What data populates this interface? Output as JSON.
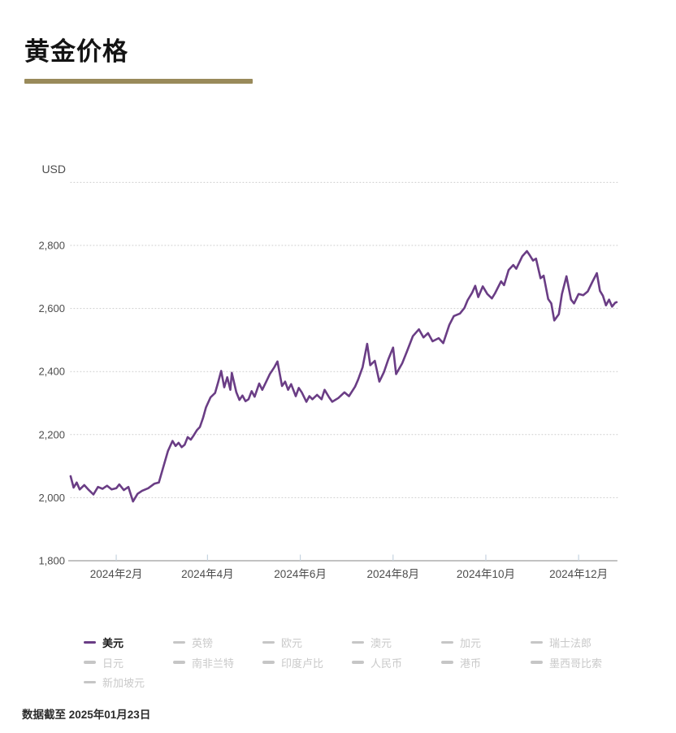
{
  "title": "黄金价格",
  "footer": {
    "text": "数据截至 2025年01月23日"
  },
  "colors": {
    "accent_bar": "#998a5a",
    "line": "#6a3d85",
    "grid": "#cccccc",
    "axis": "#9e9e9e",
    "tick": "#c5d3e0",
    "axis_text": "#4d4d4d",
    "inactive_text": "#c9c9c9",
    "inactive_swatch": "#c6c6c6"
  },
  "legend": {
    "items": [
      {
        "label": "美元",
        "active": true
      },
      {
        "label": "英镑",
        "active": false
      },
      {
        "label": "欧元",
        "active": false
      },
      {
        "label": "澳元",
        "active": false
      },
      {
        "label": "加元",
        "active": false
      },
      {
        "label": "瑞士法郎",
        "active": false
      },
      {
        "label": "日元",
        "active": false
      },
      {
        "label": "南非兰特",
        "active": false
      },
      {
        "label": "印度卢比",
        "active": false
      },
      {
        "label": "人民币",
        "active": false
      },
      {
        "label": "港币",
        "active": false
      },
      {
        "label": "墨西哥比索",
        "active": false
      },
      {
        "label": "新加坡元",
        "active": false
      }
    ]
  },
  "chart_data": {
    "type": "line",
    "title": "黄金价格",
    "ylabel": "USD",
    "grid": "horizontal-dotted",
    "legend_position": "bottom",
    "x_axis": {
      "tick_labels": [
        "2024年2月",
        "2024年4月",
        "2024年6月",
        "2024年8月",
        "2024年10月",
        "2024年12月"
      ],
      "tick_days": [
        30,
        90,
        151,
        212,
        273,
        334
      ],
      "domain_days": [
        0,
        359.5
      ]
    },
    "y_axis": {
      "ticks": [
        1800,
        2000,
        2200,
        2400,
        2600,
        2800
      ],
      "tick_labels": [
        "1,800",
        "2,000",
        "2,200",
        "2,400",
        "2,600",
        "2,800"
      ],
      "range": [
        1800,
        3000
      ],
      "gridline_values": [
        2000,
        2200,
        2400,
        2600,
        2800,
        3000
      ]
    },
    "series": [
      {
        "name": "美元",
        "color": "#6a3d85",
        "points": [
          [
            0,
            2068
          ],
          [
            2,
            2032
          ],
          [
            4,
            2048
          ],
          [
            6,
            2026
          ],
          [
            9,
            2040
          ],
          [
            12,
            2024
          ],
          [
            15,
            2010
          ],
          [
            18,
            2034
          ],
          [
            21,
            2028
          ],
          [
            24,
            2038
          ],
          [
            27,
            2026
          ],
          [
            30,
            2030
          ],
          [
            32,
            2042
          ],
          [
            35,
            2024
          ],
          [
            38,
            2034
          ],
          [
            41,
            1988
          ],
          [
            44,
            2012
          ],
          [
            47,
            2022
          ],
          [
            51,
            2030
          ],
          [
            55,
            2044
          ],
          [
            58,
            2048
          ],
          [
            61,
            2098
          ],
          [
            64,
            2148
          ],
          [
            67,
            2180
          ],
          [
            69,
            2164
          ],
          [
            71,
            2174
          ],
          [
            73,
            2160
          ],
          [
            75,
            2168
          ],
          [
            77,
            2192
          ],
          [
            79,
            2184
          ],
          [
            81,
            2198
          ],
          [
            83,
            2214
          ],
          [
            85,
            2224
          ],
          [
            87,
            2252
          ],
          [
            89,
            2286
          ],
          [
            92,
            2318
          ],
          [
            95,
            2332
          ],
          [
            97,
            2366
          ],
          [
            99,
            2402
          ],
          [
            101,
            2350
          ],
          [
            103,
            2382
          ],
          [
            105,
            2342
          ],
          [
            106,
            2396
          ],
          [
            109,
            2334
          ],
          [
            111,
            2310
          ],
          [
            113,
            2324
          ],
          [
            115,
            2306
          ],
          [
            117,
            2312
          ],
          [
            119,
            2338
          ],
          [
            121,
            2320
          ],
          [
            124,
            2362
          ],
          [
            126,
            2342
          ],
          [
            129,
            2372
          ],
          [
            131,
            2392
          ],
          [
            134,
            2414
          ],
          [
            136,
            2432
          ],
          [
            139,
            2354
          ],
          [
            141,
            2368
          ],
          [
            143,
            2342
          ],
          [
            145,
            2360
          ],
          [
            148,
            2322
          ],
          [
            150,
            2348
          ],
          [
            152,
            2334
          ],
          [
            155,
            2304
          ],
          [
            157,
            2322
          ],
          [
            159,
            2312
          ],
          [
            162,
            2326
          ],
          [
            165,
            2312
          ],
          [
            167,
            2342
          ],
          [
            170,
            2318
          ],
          [
            172,
            2304
          ],
          [
            176,
            2316
          ],
          [
            180,
            2334
          ],
          [
            183,
            2322
          ],
          [
            187,
            2352
          ],
          [
            189,
            2374
          ],
          [
            192,
            2414
          ],
          [
            195,
            2488
          ],
          [
            197,
            2420
          ],
          [
            200,
            2434
          ],
          [
            203,
            2368
          ],
          [
            206,
            2398
          ],
          [
            209,
            2440
          ],
          [
            212,
            2476
          ],
          [
            214,
            2392
          ],
          [
            218,
            2426
          ],
          [
            221,
            2462
          ],
          [
            225,
            2512
          ],
          [
            229,
            2534
          ],
          [
            232,
            2508
          ],
          [
            235,
            2522
          ],
          [
            238,
            2496
          ],
          [
            242,
            2506
          ],
          [
            245,
            2490
          ],
          [
            249,
            2548
          ],
          [
            252,
            2576
          ],
          [
            256,
            2584
          ],
          [
            259,
            2602
          ],
          [
            261,
            2626
          ],
          [
            264,
            2650
          ],
          [
            266,
            2672
          ],
          [
            268,
            2636
          ],
          [
            271,
            2670
          ],
          [
            274,
            2646
          ],
          [
            277,
            2632
          ],
          [
            279,
            2648
          ],
          [
            283,
            2686
          ],
          [
            285,
            2674
          ],
          [
            288,
            2722
          ],
          [
            291,
            2738
          ],
          [
            293,
            2726
          ],
          [
            297,
            2766
          ],
          [
            300,
            2782
          ],
          [
            302,
            2768
          ],
          [
            304,
            2752
          ],
          [
            306,
            2758
          ],
          [
            309,
            2696
          ],
          [
            311,
            2704
          ],
          [
            314,
            2630
          ],
          [
            316,
            2616
          ],
          [
            318,
            2562
          ],
          [
            321,
            2582
          ],
          [
            323,
            2646
          ],
          [
            326,
            2702
          ],
          [
            329,
            2628
          ],
          [
            331,
            2616
          ],
          [
            334,
            2646
          ],
          [
            337,
            2642
          ],
          [
            340,
            2654
          ],
          [
            343,
            2684
          ],
          [
            346,
            2712
          ],
          [
            348,
            2656
          ],
          [
            350,
            2640
          ],
          [
            352,
            2610
          ],
          [
            354,
            2628
          ],
          [
            356,
            2606
          ],
          [
            358,
            2618
          ],
          [
            359,
            2620
          ]
        ]
      }
    ]
  }
}
